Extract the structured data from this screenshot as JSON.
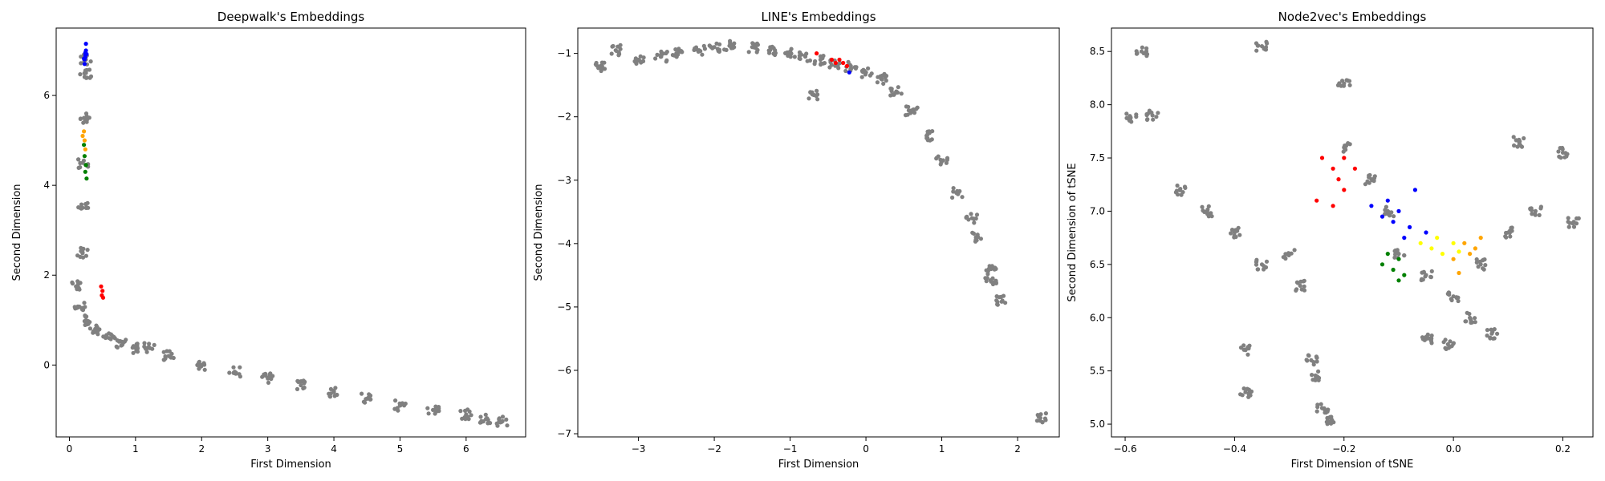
{
  "chart_data": [
    {
      "type": "scatter",
      "title": "Deepwalk's Embeddings",
      "xlabel": "First Dimension",
      "ylabel": "Second Dimension",
      "xlim": [
        -0.2,
        6.9
      ],
      "ylim": [
        -1.6,
        7.5
      ],
      "xticks": [
        "0",
        "1",
        "2",
        "3",
        "4",
        "5",
        "6"
      ],
      "yticks": [
        "0",
        "2",
        "4",
        "6"
      ],
      "grid": false,
      "legend": "none",
      "series": [
        {
          "color": "#808080",
          "shape": "L-shaped band",
          "points": [
            [
              0.1,
              1.75
            ],
            [
              0.15,
              1.3
            ],
            [
              0.25,
              1.0
            ],
            [
              0.4,
              0.8
            ],
            [
              0.6,
              0.6
            ],
            [
              0.8,
              0.45
            ],
            [
              1.0,
              0.38
            ],
            [
              1.2,
              0.4
            ],
            [
              1.5,
              0.2
            ],
            [
              2.0,
              0.0
            ],
            [
              2.5,
              -0.15
            ],
            [
              3.0,
              -0.3
            ],
            [
              3.5,
              -0.45
            ],
            [
              4.0,
              -0.6
            ],
            [
              4.5,
              -0.75
            ],
            [
              5.0,
              -0.9
            ],
            [
              5.5,
              -1.0
            ],
            [
              6.0,
              -1.1
            ],
            [
              6.3,
              -1.2
            ],
            [
              6.55,
              -1.25
            ],
            [
              0.2,
              2.5
            ],
            [
              0.2,
              3.5
            ],
            [
              0.2,
              4.5
            ],
            [
              0.22,
              5.5
            ],
            [
              0.25,
              6.5
            ],
            [
              0.25,
              6.8
            ]
          ]
        },
        {
          "color": "#0000ff",
          "points": [
            [
              0.23,
              6.7
            ],
            [
              0.23,
              6.8
            ],
            [
              0.24,
              6.85
            ],
            [
              0.24,
              6.9
            ],
            [
              0.24,
              6.95
            ],
            [
              0.25,
              7.0
            ],
            [
              0.25,
              7.15
            ],
            [
              0.22,
              6.82
            ],
            [
              0.26,
              6.92
            ]
          ]
        },
        {
          "color": "#ffa500",
          "points": [
            [
              0.22,
              5.2
            ],
            [
              0.23,
              5.0
            ],
            [
              0.24,
              4.8
            ],
            [
              0.2,
              5.1
            ]
          ]
        },
        {
          "color": "#008000",
          "points": [
            [
              0.22,
              4.9
            ],
            [
              0.23,
              4.65
            ],
            [
              0.25,
              4.45
            ],
            [
              0.24,
              4.3
            ],
            [
              0.26,
              4.15
            ]
          ]
        },
        {
          "color": "#ff0000",
          "points": [
            [
              0.48,
              1.75
            ],
            [
              0.5,
              1.65
            ],
            [
              0.49,
              1.55
            ],
            [
              0.51,
              1.5
            ]
          ]
        }
      ]
    },
    {
      "type": "scatter",
      "title": "LINE's Embeddings",
      "xlabel": "First Dimension",
      "ylabel": "Second Dimension",
      "xlim": [
        -3.8,
        2.55
      ],
      "ylim": [
        -7.05,
        -0.6
      ],
      "xticks": [
        "−3",
        "−2",
        "−1",
        "0",
        "1",
        "2"
      ],
      "yticks": [
        "−1",
        "−2",
        "−3",
        "−4",
        "−5",
        "−6",
        "−7"
      ],
      "grid": false,
      "legend": "none",
      "series": [
        {
          "color": "#808080",
          "shape": "arc",
          "points": [
            [
              -3.5,
              -1.2
            ],
            [
              -3.3,
              -0.95
            ],
            [
              -3.0,
              -1.1
            ],
            [
              -2.7,
              -1.05
            ],
            [
              -2.5,
              -1.0
            ],
            [
              -2.2,
              -0.95
            ],
            [
              -2.0,
              -0.9
            ],
            [
              -1.8,
              -0.88
            ],
            [
              -1.5,
              -0.9
            ],
            [
              -1.2,
              -0.95
            ],
            [
              -1.0,
              -1.0
            ],
            [
              -0.8,
              -1.05
            ],
            [
              -0.6,
              -1.1
            ],
            [
              -0.4,
              -1.15
            ],
            [
              -0.2,
              -1.2
            ],
            [
              0.0,
              -1.3
            ],
            [
              0.2,
              -1.4
            ],
            [
              0.4,
              -1.6
            ],
            [
              0.6,
              -1.9
            ],
            [
              0.8,
              -2.3
            ],
            [
              1.0,
              -2.7
            ],
            [
              1.2,
              -3.2
            ],
            [
              1.4,
              -3.6
            ],
            [
              1.45,
              -3.9
            ],
            [
              1.65,
              -4.4
            ],
            [
              1.65,
              -4.6
            ],
            [
              1.8,
              -4.9
            ],
            [
              2.3,
              -6.75
            ],
            [
              -0.7,
              -1.65
            ]
          ]
        },
        {
          "color": "#ff0000",
          "points": [
            [
              -0.65,
              -1.0
            ],
            [
              -0.45,
              -1.1
            ],
            [
              -0.4,
              -1.15
            ],
            [
              -0.35,
              -1.1
            ],
            [
              -0.3,
              -1.15
            ],
            [
              -0.25,
              -1.2
            ]
          ]
        },
        {
          "color": "#0000ff",
          "points": [
            [
              -0.22,
              -1.3
            ]
          ]
        }
      ]
    },
    {
      "type": "scatter",
      "title": "Node2vec's Embeddings",
      "xlabel": "First Dimension of tSNE",
      "ylabel": "Second Dimension of tSNE",
      "xlim": [
        -0.625,
        0.255
      ],
      "ylim": [
        4.88,
        8.72
      ],
      "xticks": [
        "−0.6",
        "−0.4",
        "−0.2",
        "0.0",
        "0.2"
      ],
      "yticks": [
        "5.0",
        "5.5",
        "6.0",
        "6.5",
        "7.0",
        "7.5",
        "8.0",
        "8.5"
      ],
      "grid": false,
      "legend": "none",
      "series": [
        {
          "color": "#808080",
          "shape": "dense cloud",
          "points": [
            [
              -0.59,
              7.88
            ],
            [
              -0.57,
              8.5
            ],
            [
              -0.55,
              7.9
            ],
            [
              -0.5,
              7.2
            ],
            [
              -0.45,
              7.0
            ],
            [
              -0.4,
              6.8
            ],
            [
              -0.35,
              8.55
            ],
            [
              -0.35,
              6.5
            ],
            [
              -0.3,
              6.6
            ],
            [
              -0.28,
              6.3
            ],
            [
              -0.26,
              5.6
            ],
            [
              -0.25,
              5.45
            ],
            [
              -0.24,
              5.15
            ],
            [
              -0.23,
              5.05
            ],
            [
              -0.38,
              5.7
            ],
            [
              -0.38,
              5.3
            ],
            [
              -0.2,
              8.2
            ],
            [
              -0.2,
              7.6
            ],
            [
              -0.15,
              7.3
            ],
            [
              -0.12,
              7.0
            ],
            [
              -0.1,
              6.6
            ],
            [
              -0.05,
              6.4
            ],
            [
              0.0,
              6.2
            ],
            [
              0.03,
              6.0
            ],
            [
              0.05,
              6.5
            ],
            [
              0.1,
              6.8
            ],
            [
              0.15,
              7.0
            ],
            [
              0.2,
              7.55
            ],
            [
              0.22,
              6.9
            ],
            [
              -0.05,
              5.8
            ],
            [
              -0.01,
              5.75
            ],
            [
              0.07,
              5.85
            ],
            [
              0.12,
              7.65
            ]
          ]
        },
        {
          "color": "#ff0000",
          "points": [
            [
              -0.24,
              7.5
            ],
            [
              -0.22,
              7.4
            ],
            [
              -0.21,
              7.3
            ],
            [
              -0.2,
              7.2
            ],
            [
              -0.22,
              7.05
            ],
            [
              -0.18,
              7.4
            ],
            [
              -0.2,
              7.5
            ],
            [
              -0.25,
              7.1
            ]
          ]
        },
        {
          "color": "#0000ff",
          "points": [
            [
              -0.15,
              7.05
            ],
            [
              -0.13,
              6.95
            ],
            [
              -0.11,
              6.9
            ],
            [
              -0.1,
              7.0
            ],
            [
              -0.08,
              6.85
            ],
            [
              -0.07,
              7.2
            ],
            [
              -0.05,
              6.8
            ],
            [
              -0.12,
              7.1
            ],
            [
              -0.09,
              6.75
            ]
          ]
        },
        {
          "color": "#008000",
          "points": [
            [
              -0.13,
              6.5
            ],
            [
              -0.11,
              6.45
            ],
            [
              -0.1,
              6.55
            ],
            [
              -0.09,
              6.4
            ],
            [
              -0.12,
              6.6
            ],
            [
              -0.1,
              6.35
            ]
          ]
        },
        {
          "color": "#ffff00",
          "points": [
            [
              -0.06,
              6.7
            ],
            [
              -0.04,
              6.65
            ],
            [
              -0.02,
              6.6
            ],
            [
              0.0,
              6.7
            ],
            [
              -0.03,
              6.75
            ],
            [
              0.01,
              6.62
            ]
          ]
        },
        {
          "color": "#ffa500",
          "points": [
            [
              0.0,
              6.55
            ],
            [
              0.02,
              6.7
            ],
            [
              0.04,
              6.65
            ],
            [
              0.01,
              6.42
            ],
            [
              0.05,
              6.75
            ],
            [
              0.03,
              6.6
            ]
          ]
        }
      ]
    }
  ]
}
